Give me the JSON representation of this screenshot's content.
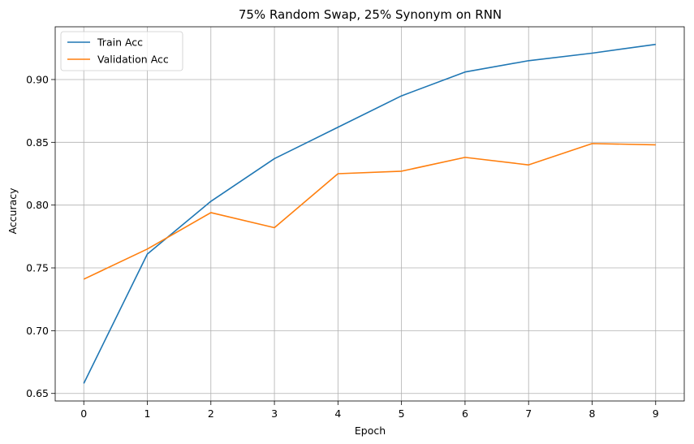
{
  "chart_data": {
    "type": "line",
    "title": "75% Random Swap, 25% Synonym on RNN",
    "xlabel": "Epoch",
    "ylabel": "Accuracy",
    "x": [
      0,
      1,
      2,
      3,
      4,
      5,
      6,
      7,
      8,
      9
    ],
    "xticks": [
      0,
      1,
      2,
      3,
      4,
      5,
      6,
      7,
      8,
      9
    ],
    "yticks": [
      0.65,
      0.7,
      0.75,
      0.8,
      0.85,
      0.9
    ],
    "ytick_labels": [
      "0.65",
      "0.70",
      "0.75",
      "0.80",
      "0.85",
      "0.90"
    ],
    "xlim": [
      -0.45,
      9.45
    ],
    "ylim": [
      0.644,
      0.942
    ],
    "grid": true,
    "legend_position": "top-left",
    "series": [
      {
        "name": "Train Acc",
        "color": "#1f77b4",
        "values": [
          0.658,
          0.761,
          0.803,
          0.837,
          0.862,
          0.887,
          0.906,
          0.915,
          0.921,
          0.928
        ]
      },
      {
        "name": "Validation Acc",
        "color": "#ff7f0e",
        "values": [
          0.741,
          0.765,
          0.794,
          0.782,
          0.825,
          0.827,
          0.838,
          0.832,
          0.849,
          0.848
        ]
      }
    ]
  }
}
